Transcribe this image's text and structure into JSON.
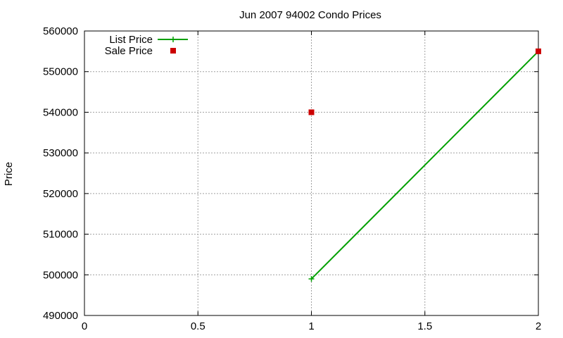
{
  "chart_data": {
    "type": "line",
    "title": "Jun 2007 94002 Condo Prices",
    "xlabel": "",
    "ylabel": "Price",
    "xlim": [
      0,
      2
    ],
    "ylim": [
      490000,
      560000
    ],
    "x_ticks": [
      0,
      0.5,
      1,
      1.5,
      2
    ],
    "y_ticks": [
      490000,
      500000,
      510000,
      520000,
      530000,
      540000,
      550000,
      560000
    ],
    "grid": true,
    "legend_position": "top-left",
    "series": [
      {
        "name": "List Price",
        "style": "linespoints",
        "marker": "plus",
        "color": "#00a000",
        "points": [
          {
            "x": 1,
            "y": 499000
          },
          {
            "x": 2,
            "y": 555000
          }
        ]
      },
      {
        "name": "Sale Price",
        "style": "points",
        "marker": "square",
        "color": "#cc0000",
        "points": [
          {
            "x": 1,
            "y": 540000
          },
          {
            "x": 2,
            "y": 555000
          }
        ]
      }
    ]
  }
}
